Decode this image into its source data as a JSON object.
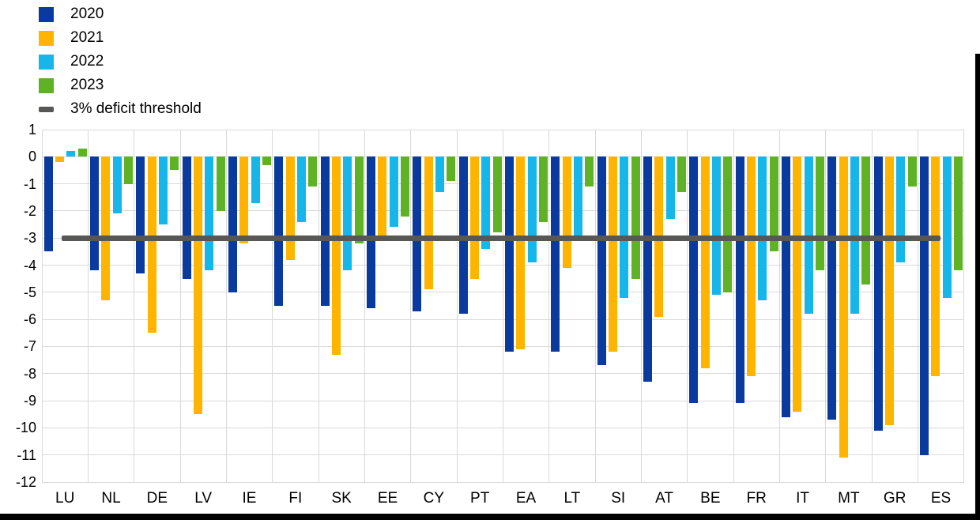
{
  "chart_data": {
    "type": "bar",
    "title": "",
    "categories": [
      "LU",
      "NL",
      "DE",
      "LV",
      "IE",
      "FI",
      "SK",
      "EE",
      "CY",
      "PT",
      "EA",
      "LT",
      "SI",
      "AT",
      "BE",
      "FR",
      "IT",
      "MT",
      "GR",
      "ES"
    ],
    "series": [
      {
        "name": "2020",
        "color": "#0a3a9e",
        "values": [
          -3.5,
          -4.2,
          -4.3,
          -4.5,
          -5.0,
          -5.5,
          -5.5,
          -5.6,
          -5.7,
          -5.8,
          -7.2,
          -7.2,
          -7.7,
          -8.3,
          -9.1,
          -9.1,
          -9.6,
          -9.7,
          -10.1,
          -11.0
        ]
      },
      {
        "name": "2021",
        "color": "#ffb400",
        "values": [
          -0.2,
          -5.3,
          -6.5,
          -9.5,
          -3.2,
          -3.8,
          -7.3,
          -3.1,
          -4.9,
          -4.5,
          -7.1,
          -4.1,
          -7.2,
          -5.9,
          -7.8,
          -8.1,
          -9.4,
          -11.1,
          -9.9,
          -8.1
        ]
      },
      {
        "name": "2022",
        "color": "#16b5ea",
        "values": [
          0.2,
          -2.1,
          -2.5,
          -4.2,
          -1.7,
          -2.4,
          -4.2,
          -2.6,
          -1.3,
          -3.4,
          -3.9,
          -3.1,
          -5.2,
          -2.3,
          -5.1,
          -5.3,
          -5.8,
          -5.8,
          -3.9,
          -5.2
        ]
      },
      {
        "name": "2023",
        "color": "#5fb226",
        "values": [
          0.3,
          -1.0,
          -0.5,
          -2.0,
          -0.3,
          -1.1,
          -3.2,
          -2.2,
          -0.9,
          -2.8,
          -2.4,
          -1.1,
          -4.5,
          -1.3,
          -5.0,
          -3.5,
          -4.2,
          -4.7,
          -1.1,
          -4.2
        ]
      }
    ],
    "threshold": {
      "label": "3% deficit threshold",
      "value": -3,
      "color": "#575756"
    },
    "ylim": [
      -12,
      1
    ],
    "yticks": [
      1,
      0,
      -1,
      -2,
      -3,
      -4,
      -5,
      -6,
      -7,
      -8,
      -9,
      -10,
      -11,
      -12
    ],
    "xlabel": "",
    "ylabel": "",
    "grid": true,
    "legend_position": "top-left"
  }
}
